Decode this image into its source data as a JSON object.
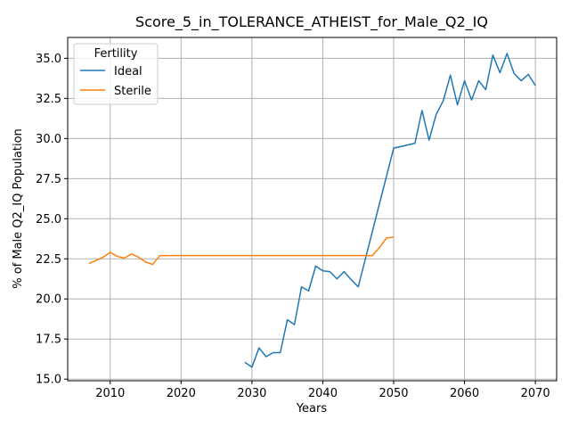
{
  "chart_data": {
    "type": "line",
    "title": "Score_5_in_TOLERANCE_ATHEIST_for_Male_Q2_IQ",
    "xlabel": "Years",
    "ylabel": "% of Male Q2_IQ Population",
    "xlim": [
      2004,
      2073
    ],
    "ylim": [
      14.9,
      36.3
    ],
    "xticks": [
      2010,
      2020,
      2030,
      2040,
      2050,
      2060,
      2070
    ],
    "yticks": [
      15.0,
      17.5,
      20.0,
      22.5,
      25.0,
      27.5,
      30.0,
      32.5,
      35.0
    ],
    "ytick_labels": [
      "15.0",
      "17.5",
      "20.0",
      "22.5",
      "25.0",
      "27.5",
      "30.0",
      "32.5",
      "35.0"
    ],
    "grid": true,
    "legend": {
      "title": "Fertility",
      "position": "top-left"
    },
    "series": [
      {
        "name": "Ideal",
        "color": "#1f77b4",
        "points": [
          [
            2029,
            16.05
          ],
          [
            2030,
            15.75
          ],
          [
            2031,
            16.95
          ],
          [
            2032,
            16.4
          ],
          [
            2033,
            16.65
          ],
          [
            2034,
            16.65
          ],
          [
            2035,
            18.7
          ],
          [
            2036,
            18.4
          ],
          [
            2037,
            20.75
          ],
          [
            2038,
            20.5
          ],
          [
            2039,
            22.05
          ],
          [
            2040,
            21.75
          ],
          [
            2041,
            21.7
          ],
          [
            2042,
            21.25
          ],
          [
            2043,
            21.7
          ],
          [
            2044,
            21.2
          ],
          [
            2045,
            20.75
          ],
          [
            2050,
            29.4
          ],
          [
            2053,
            29.7
          ],
          [
            2054,
            31.75
          ],
          [
            2055,
            29.9
          ],
          [
            2056,
            31.5
          ],
          [
            2057,
            32.35
          ],
          [
            2058,
            33.95
          ],
          [
            2059,
            32.1
          ],
          [
            2060,
            33.6
          ],
          [
            2061,
            32.4
          ],
          [
            2062,
            33.6
          ],
          [
            2063,
            33.05
          ],
          [
            2064,
            35.2
          ],
          [
            2065,
            34.1
          ],
          [
            2066,
            35.3
          ],
          [
            2067,
            34.05
          ],
          [
            2068,
            33.6
          ],
          [
            2069,
            34.0
          ],
          [
            2070,
            33.3
          ]
        ]
      },
      {
        "name": "Sterile",
        "color": "#ff7f0e",
        "points": [
          [
            2007,
            22.2
          ],
          [
            2008,
            22.4
          ],
          [
            2009,
            22.6
          ],
          [
            2010,
            22.9
          ],
          [
            2011,
            22.65
          ],
          [
            2012,
            22.55
          ],
          [
            2013,
            22.8
          ],
          [
            2014,
            22.6
          ],
          [
            2015,
            22.3
          ],
          [
            2016,
            22.15
          ],
          [
            2017,
            22.7
          ],
          [
            2018,
            22.7
          ],
          [
            2020,
            22.7
          ],
          [
            2025,
            22.7
          ],
          [
            2030,
            22.7
          ],
          [
            2035,
            22.7
          ],
          [
            2040,
            22.7
          ],
          [
            2045,
            22.7
          ],
          [
            2047,
            22.7
          ],
          [
            2048,
            23.2
          ],
          [
            2049,
            23.8
          ],
          [
            2050,
            23.85
          ]
        ]
      }
    ]
  }
}
